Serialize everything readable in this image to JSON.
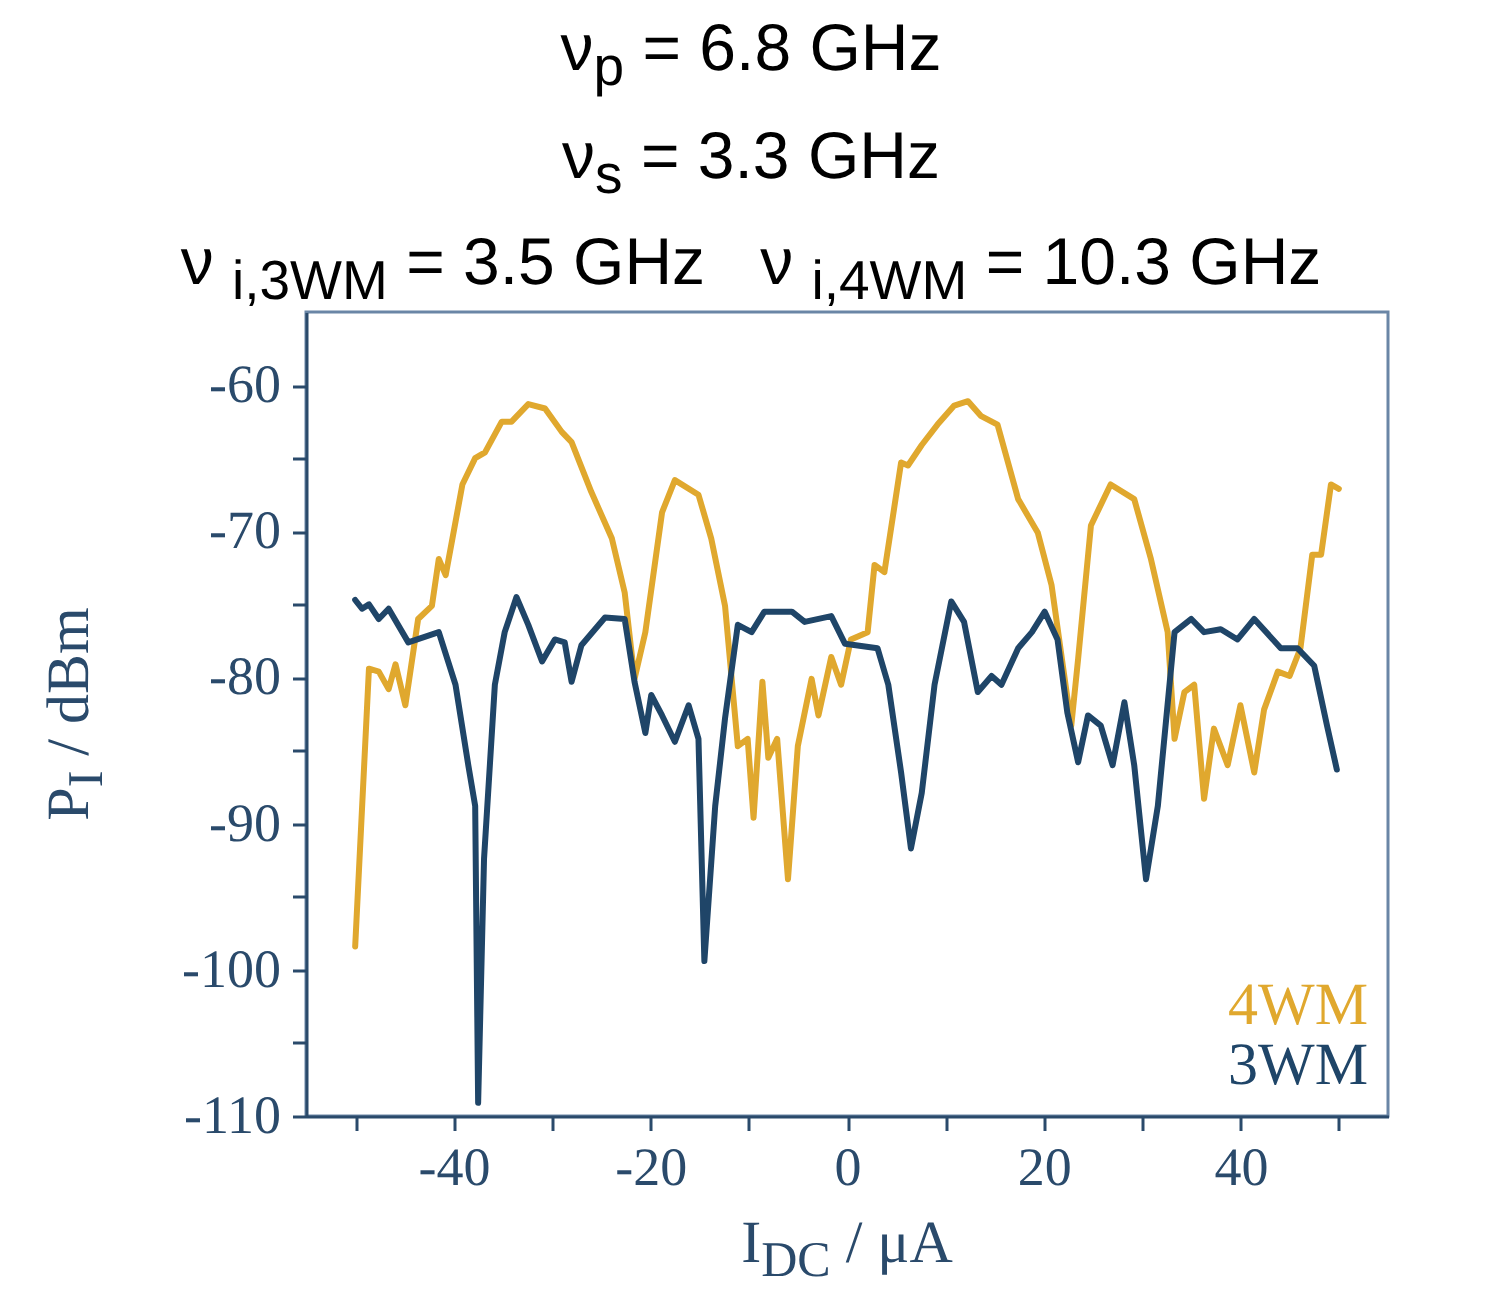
{
  "chart_data": {
    "type": "line",
    "title": "ν$_{p}$ = 6.8 GHz\nν$_{s}$ = 3.3 GHz\nν $_{i,3WM}$ = 3.5 GHz   ν $_{i,4WM}$ = 10.3 GHz",
    "xlabel": "I$_{DC}$ / μA",
    "ylabel": "P$_{I}$ / dBm",
    "xlim": [
      -55,
      55
    ],
    "xticks": [
      {
        "value": -50,
        "label": null
      },
      -40,
      {
        "value": -30,
        "label": null
      },
      -20,
      {
        "value": -10,
        "label": null
      },
      0,
      {
        "value": 10,
        "label": null
      },
      20,
      {
        "value": 30,
        "label": null
      },
      40,
      {
        "value": 50,
        "label": null
      }
    ],
    "ylim": [
      -110,
      -55
    ],
    "yticks": [
      -110,
      {
        "value": -105,
        "label": null
      },
      -100,
      {
        "value": -95,
        "label": null
      },
      -90,
      {
        "value": -85,
        "label": null
      },
      -80,
      {
        "value": -75,
        "label": null
      },
      -70,
      {
        "value": -65,
        "label": null
      },
      -60
    ],
    "grid": false,
    "legend": "bottom right",
    "line_style": "solid",
    "series": [
      {
        "name": "4WM",
        "color": "#e0a82e",
        "x": [
          -50,
          -48.6,
          -47.6,
          -46.6,
          -45.9,
          -44.9,
          -43.6,
          -42.2,
          -41.5,
          -40.8,
          -39.1,
          -37.8,
          -36.8,
          -35.1,
          -34.1,
          -32.4,
          -30.7,
          -29,
          -28,
          -26,
          -23.9,
          -22.6,
          -21.6,
          -20.5,
          -18.8,
          -17.5,
          -15.1,
          -13.8,
          -12.4,
          -11.1,
          -10.1,
          -9.5,
          -8.6,
          -8,
          -7.1,
          -6,
          -5,
          -3.6,
          -2.9,
          -1.6,
          -0.6,
          0.4,
          2.1,
          2.8,
          3.8,
          5.5,
          6.2,
          7.6,
          9.2,
          10.9,
          12.3,
          13.6,
          15.3,
          17.4,
          19.4,
          20.8,
          22.8,
          23.5,
          24.8,
          26.8,
          29.2,
          30.9,
          32.6,
          33.3,
          34.3,
          35.3,
          36.3,
          37.3,
          38.7,
          40,
          41.4,
          42.4,
          43.8,
          45,
          46.1,
          47.3,
          48.2,
          49.2,
          50
        ],
        "values": [
          -98.4,
          -79.4,
          -79.6,
          -80.8,
          -79.1,
          -81.9,
          -76,
          -75.1,
          -71.9,
          -73,
          -66.8,
          -65,
          -64.6,
          -62.5,
          -62.5,
          -61.3,
          -61.6,
          -63.2,
          -63.9,
          -67.3,
          -70.5,
          -74.2,
          -80.1,
          -76.9,
          -68.7,
          -66.5,
          -67.5,
          -70.5,
          -75.1,
          -84.7,
          -84.2,
          -89.6,
          -80.3,
          -85.5,
          -84.2,
          -93.8,
          -84.7,
          -80.1,
          -82.6,
          -78.6,
          -80.5,
          -77.4,
          -76.9,
          -72.3,
          -72.8,
          -65.3,
          -65.5,
          -64.1,
          -62.7,
          -61.4,
          -61.1,
          -62.1,
          -62.7,
          -67.8,
          -70.1,
          -73.7,
          -83.3,
          -78.7,
          -69.6,
          -66.8,
          -67.8,
          -71.9,
          -76.9,
          -84.2,
          -81,
          -80.5,
          -88.3,
          -83.5,
          -86,
          -81.9,
          -86.5,
          -82.2,
          -79.6,
          -79.9,
          -78,
          -71.6,
          -71.6,
          -66.8,
          -67.1
        ]
      },
      {
        "name": "3WM",
        "color": "#1f4568",
        "x": [
          -50,
          -49.3,
          -48.6,
          -47.6,
          -46.6,
          -44.6,
          -41.5,
          -39.8,
          -38.5,
          -37.8,
          -37.5,
          -36.9,
          -35.8,
          -34.8,
          -33.6,
          -32.4,
          -31,
          -29.7,
          -28.7,
          -28,
          -27,
          -24.6,
          -22.6,
          -21.6,
          -20.5,
          -19.9,
          -18.8,
          -17.5,
          -16.1,
          -15.1,
          -14.5,
          -13.4,
          -12.4,
          -11.1,
          -9.7,
          -8.4,
          -5.6,
          -4.3,
          -1.6,
          -0.2,
          3.1,
          4.2,
          5.5,
          6.5,
          7.6,
          8.9,
          10.6,
          11.9,
          13.3,
          14.7,
          15.7,
          17.4,
          18.8,
          20.1,
          21.4,
          22.4,
          23.5,
          24.5,
          25.8,
          27,
          28.2,
          29.2,
          30.4,
          31.6,
          33.3,
          35,
          36.3,
          38,
          39.7,
          41.4,
          44.1,
          45.8,
          47.5,
          48.8,
          49.8
        ],
        "values": [
          -74.7,
          -75.3,
          -75,
          -76,
          -75.3,
          -77.6,
          -76.9,
          -80.5,
          -86,
          -88.8,
          -109.1,
          -92.4,
          -80.5,
          -76.9,
          -74.5,
          -76.4,
          -78.9,
          -77.4,
          -77.6,
          -80.3,
          -77.8,
          -75.9,
          -76,
          -80.3,
          -83.8,
          -81.2,
          -82.6,
          -84.4,
          -81.9,
          -84.2,
          -99.4,
          -88.8,
          -82.8,
          -76.4,
          -76.9,
          -75.5,
          -75.5,
          -76.2,
          -75.8,
          -77.7,
          -78,
          -80.5,
          -86.5,
          -91.7,
          -87.9,
          -80.5,
          -74.8,
          -76.2,
          -81,
          -79.9,
          -80.5,
          -78,
          -76.9,
          -75.5,
          -77.4,
          -82.4,
          -85.8,
          -82.6,
          -83.3,
          -86,
          -81.7,
          -86,
          -93.8,
          -88.8,
          -76.9,
          -76,
          -76.9,
          -76.7,
          -77.4,
          -76,
          -78,
          -78,
          -79.2,
          -83.3,
          -86.3
        ]
      }
    ]
  }
}
